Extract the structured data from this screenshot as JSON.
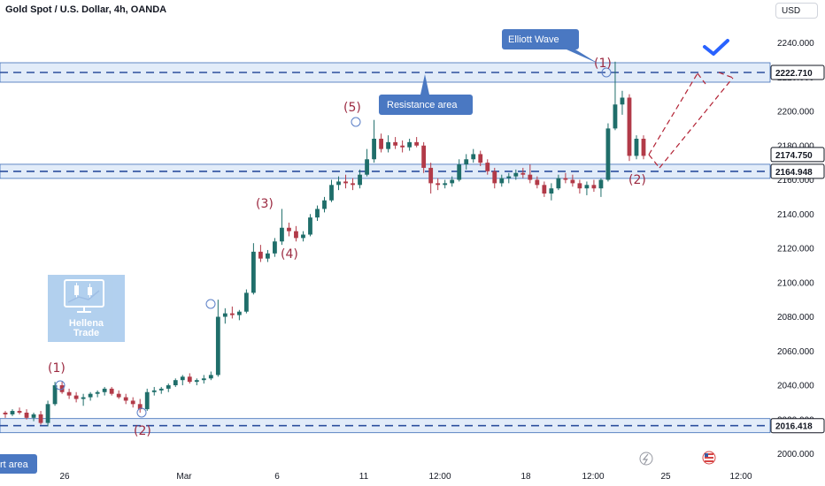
{
  "header": {
    "title": "Gold Spot / U.S. Dollar, 4h, OANDA",
    "currency": "USD"
  },
  "annotations": {
    "elliott_wave": "Elliott Wave",
    "resistance_area": "Resistance area",
    "support_area_partial": "rt area",
    "logo_line1": "Hellena",
    "logo_line2": "Trade"
  },
  "waves": {
    "left_1": "(1)",
    "left_2": "(2)",
    "w3": "(3)",
    "w4": "(4)",
    "w5": "(5)",
    "right_1": "(1)",
    "right_2": "(2)"
  },
  "chart_data": {
    "type": "candlestick",
    "title": "Gold Spot / U.S. Dollar, 4h, OANDA",
    "y_axis": {
      "ticks": [
        "2240.000",
        "2220.000",
        "2200.000",
        "2180.000",
        "2160.000",
        "2140.000",
        "2120.000",
        "2100.000",
        "2080.000",
        "2060.000",
        "2040.000",
        "2020.000",
        "2000.000"
      ],
      "ylim": [
        1996,
        2250
      ]
    },
    "x_axis": {
      "ticks": [
        "26",
        "Mar",
        "6",
        "11",
        "12:00",
        "18",
        "12:00",
        "25",
        "12:00"
      ]
    },
    "price_tags": {
      "resistance": "2222.710",
      "current": "2174.750",
      "support_mid": "2164.948",
      "support_low": "2016.418"
    },
    "levels": {
      "resistance": 2222.71,
      "support_mid": 2164.948,
      "support_low": 2016.418
    },
    "ohlc": [
      [
        2024,
        2025,
        2021,
        2023
      ],
      [
        2023,
        2026,
        2022,
        2025
      ],
      [
        2025,
        2027,
        2023,
        2024
      ],
      [
        2024,
        2026,
        2020,
        2021
      ],
      [
        2021,
        2024,
        2019,
        2023
      ],
      [
        2023,
        2025,
        2017,
        2018
      ],
      [
        2018,
        2031,
        2016,
        2029
      ],
      [
        2029,
        2042,
        2028,
        2040
      ],
      [
        2040,
        2042,
        2035,
        2036
      ],
      [
        2036,
        2038,
        2032,
        2034
      ],
      [
        2034,
        2036,
        2030,
        2032
      ],
      [
        2032,
        2035,
        2028,
        2033
      ],
      [
        2033,
        2036,
        2031,
        2035
      ],
      [
        2035,
        2037,
        2033,
        2036
      ],
      [
        2036,
        2039,
        2034,
        2038
      ],
      [
        2038,
        2039,
        2034,
        2035
      ],
      [
        2035,
        2037,
        2032,
        2033
      ],
      [
        2033,
        2035,
        2029,
        2031
      ],
      [
        2031,
        2033,
        2027,
        2029
      ],
      [
        2029,
        2032,
        2024,
        2026
      ],
      [
        2026,
        2038,
        2025,
        2036
      ],
      [
        2036,
        2039,
        2034,
        2037
      ],
      [
        2037,
        2039,
        2035,
        2038
      ],
      [
        2038,
        2041,
        2036,
        2040
      ],
      [
        2040,
        2044,
        2039,
        2043
      ],
      [
        2043,
        2046,
        2040,
        2045
      ],
      [
        2045,
        2047,
        2041,
        2042
      ],
      [
        2042,
        2044,
        2040,
        2043
      ],
      [
        2043,
        2046,
        2041,
        2044
      ],
      [
        2044,
        2048,
        2043,
        2046
      ],
      [
        2046,
        2090,
        2045,
        2080
      ],
      [
        2080,
        2085,
        2076,
        2082
      ],
      [
        2082,
        2086,
        2079,
        2081
      ],
      [
        2081,
        2084,
        2078,
        2083
      ],
      [
        2083,
        2096,
        2082,
        2094
      ],
      [
        2094,
        2123,
        2093,
        2118
      ],
      [
        2118,
        2122,
        2112,
        2114
      ],
      [
        2114,
        2119,
        2112,
        2117
      ],
      [
        2117,
        2126,
        2115,
        2124
      ],
      [
        2124,
        2143,
        2122,
        2132
      ],
      [
        2132,
        2135,
        2127,
        2130
      ],
      [
        2130,
        2133,
        2124,
        2126
      ],
      [
        2126,
        2130,
        2124,
        2128
      ],
      [
        2128,
        2140,
        2127,
        2138
      ],
      [
        2138,
        2145,
        2136,
        2143
      ],
      [
        2143,
        2150,
        2141,
        2148
      ],
      [
        2148,
        2160,
        2147,
        2157
      ],
      [
        2157,
        2162,
        2154,
        2159
      ],
      [
        2159,
        2163,
        2155,
        2158
      ],
      [
        2158,
        2161,
        2154,
        2157
      ],
      [
        2157,
        2166,
        2155,
        2163
      ],
      [
        2163,
        2178,
        2162,
        2172
      ],
      [
        2172,
        2195,
        2170,
        2184
      ],
      [
        2184,
        2187,
        2176,
        2178
      ],
      [
        2178,
        2186,
        2176,
        2182
      ],
      [
        2182,
        2185,
        2178,
        2180
      ],
      [
        2180,
        2183,
        2176,
        2179
      ],
      [
        2179,
        2184,
        2177,
        2182
      ],
      [
        2182,
        2185,
        2179,
        2180
      ],
      [
        2180,
        2182,
        2164,
        2167
      ],
      [
        2167,
        2170,
        2152,
        2158
      ],
      [
        2158,
        2161,
        2154,
        2157
      ],
      [
        2157,
        2160,
        2155,
        2158
      ],
      [
        2158,
        2162,
        2156,
        2160
      ],
      [
        2160,
        2172,
        2159,
        2169
      ],
      [
        2169,
        2175,
        2166,
        2172
      ],
      [
        2172,
        2178,
        2170,
        2175
      ],
      [
        2175,
        2177,
        2168,
        2170
      ],
      [
        2170,
        2172,
        2163,
        2165
      ],
      [
        2165,
        2167,
        2155,
        2158
      ],
      [
        2158,
        2163,
        2156,
        2161
      ],
      [
        2161,
        2164,
        2158,
        2162
      ],
      [
        2162,
        2166,
        2160,
        2164
      ],
      [
        2164,
        2167,
        2161,
        2163
      ],
      [
        2163,
        2169,
        2158,
        2160
      ],
      [
        2160,
        2162,
        2155,
        2157
      ],
      [
        2157,
        2159,
        2150,
        2152
      ],
      [
        2152,
        2158,
        2148,
        2155
      ],
      [
        2155,
        2163,
        2154,
        2161
      ],
      [
        2161,
        2164,
        2158,
        2160
      ],
      [
        2160,
        2163,
        2156,
        2158
      ],
      [
        2158,
        2160,
        2152,
        2155
      ],
      [
        2155,
        2159,
        2151,
        2157
      ],
      [
        2157,
        2160,
        2153,
        2155
      ],
      [
        2155,
        2161,
        2150,
        2160
      ],
      [
        2160,
        2193,
        2159,
        2190
      ],
      [
        2190,
        2229,
        2189,
        2204
      ],
      [
        2204,
        2212,
        2198,
        2208
      ],
      [
        2208,
        2210,
        2171,
        2174
      ],
      [
        2174,
        2186,
        2172,
        2184
      ],
      [
        2184,
        2186,
        2172,
        2174
      ]
    ]
  }
}
